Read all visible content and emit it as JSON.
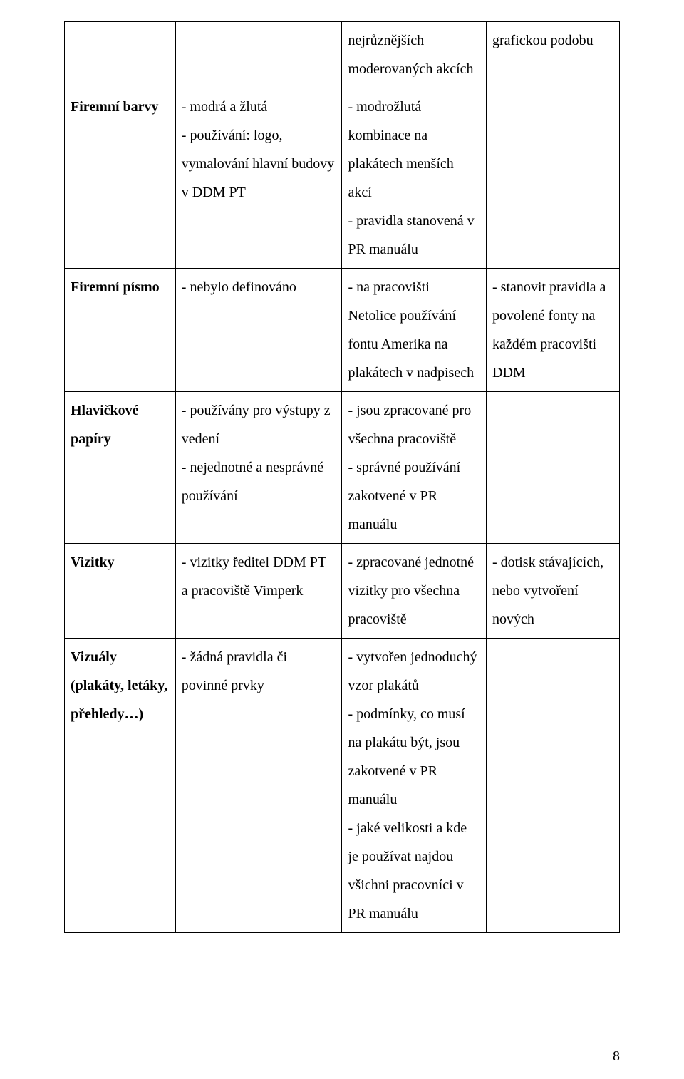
{
  "page_number": "8",
  "text_color": "#000000",
  "background_color": "#ffffff",
  "border_color": "#000000",
  "font_family": "Times New Roman",
  "base_font_size_pt": 15,
  "rows": [
    {
      "col1": "",
      "col2": "",
      "col3": "nejrůznějších moderovaných akcích",
      "col4": "grafickou podobu"
    },
    {
      "col1_bold": "Firemní barvy",
      "col2": "- modrá a žlutá\n- používání: logo, vymalování hlavní budovy v DDM PT",
      "col3": "- modrožlutá kombinace na plakátech menších akcí\n- pravidla stanovená v PR manuálu",
      "col4": ""
    },
    {
      "col1_bold": "Firemní písmo",
      "col2": "- nebylo definováno",
      "col3": "- na pracovišti Netolice používání fontu Amerika na plakátech v nadpisech",
      "col4": "- stanovit pravidla a povolené fonty na každém pracovišti DDM"
    },
    {
      "col1_bold": "Hlavičkové papíry",
      "col2": "- používány pro výstupy z vedení\n- nejednotné a nesprávné používání",
      "col3": "- jsou zpracované pro všechna pracoviště\n- správné používání zakotvené v PR manuálu",
      "col4": ""
    },
    {
      "col1_bold": "Vizitky",
      "col2": "- vizitky ředitel DDM PT a pracoviště Vimperk",
      "col3": "- zpracované jednotné vizitky pro všechna pracoviště",
      "col4": "- dotisk stávajících, nebo vytvoření nových"
    },
    {
      "col1_bold": "Vizuály (plakáty, letáky, přehledy…)",
      "col2": "- žádná pravidla či povinné prvky",
      "col3": "- vytvořen jednoduchý vzor plakátů\n- podmínky, co musí na plakátu být, jsou zakotvené v PR manuálu\n- jaké velikosti a kde je používat najdou všichni pracovníci v PR manuálu",
      "col4": ""
    }
  ]
}
